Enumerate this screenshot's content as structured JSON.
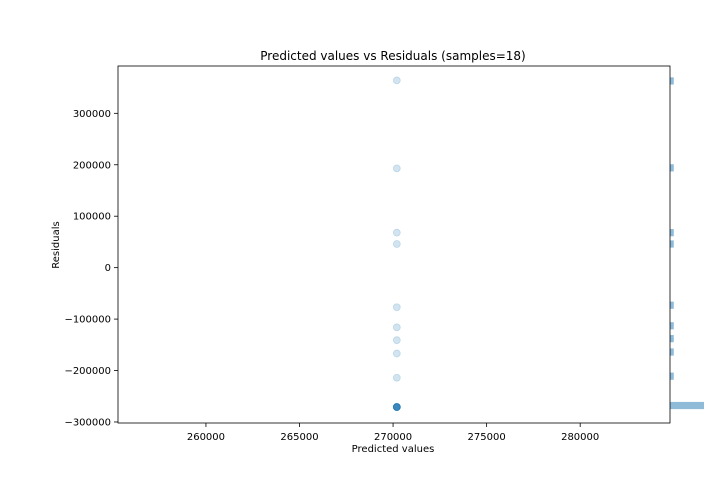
{
  "chart_data": {
    "type": "scatter",
    "title": "Predicted values vs Residuals (samples=18)",
    "xlabel": "Predicted values",
    "ylabel": "Residuals",
    "xlim": [
      255300,
      284800
    ],
    "ylim": [
      -302000,
      392000
    ],
    "xticks": [
      260000,
      265000,
      270000,
      275000,
      280000
    ],
    "xtick_labels": [
      "260000",
      "265000",
      "270000",
      "275000",
      "280000"
    ],
    "yticks": [
      -300000,
      -200000,
      -100000,
      0,
      100000,
      200000,
      300000
    ],
    "ytick_labels": [
      "−300000",
      "−200000",
      "−100000",
      "0",
      "100000",
      "200000",
      "300000"
    ],
    "grid": false,
    "point_color": "#1f77b4",
    "point_alpha": 0.2,
    "series": [
      {
        "x": [
          270200,
          270200,
          270200,
          270200,
          270200,
          270200,
          270200,
          270200,
          270200,
          270200,
          270200,
          270200,
          270200,
          270200,
          270200,
          270200,
          270200,
          270200
        ],
        "y": [
          364000,
          193000,
          68000,
          46000,
          -77000,
          -116000,
          -141000,
          -167000,
          -214000,
          -271000,
          -271000,
          -271000,
          -271000,
          -271000,
          -271000,
          -271000,
          -271000,
          -271000
        ]
      }
    ],
    "marginal_histogram": {
      "orientation": "horizontal",
      "side": "right",
      "bins": [
        {
          "y_low": 356000,
          "y_high": 370000,
          "count": 1
        },
        {
          "y_low": 187000,
          "y_high": 201000,
          "count": 1
        },
        {
          "y_low": 61000,
          "y_high": 75000,
          "count": 1
        },
        {
          "y_low": 39000,
          "y_high": 53000,
          "count": 1
        },
        {
          "y_low": -80000,
          "y_high": -66000,
          "count": 1
        },
        {
          "y_low": -120000,
          "y_high": -106000,
          "count": 1
        },
        {
          "y_low": -145000,
          "y_high": -131000,
          "count": 1
        },
        {
          "y_low": -171000,
          "y_high": -157000,
          "count": 1
        },
        {
          "y_low": -218000,
          "y_high": -204000,
          "count": 1
        },
        {
          "y_low": -275000,
          "y_high": -261000,
          "count": 9
        }
      ],
      "color": "#1f77b4",
      "alpha": 0.5
    }
  }
}
